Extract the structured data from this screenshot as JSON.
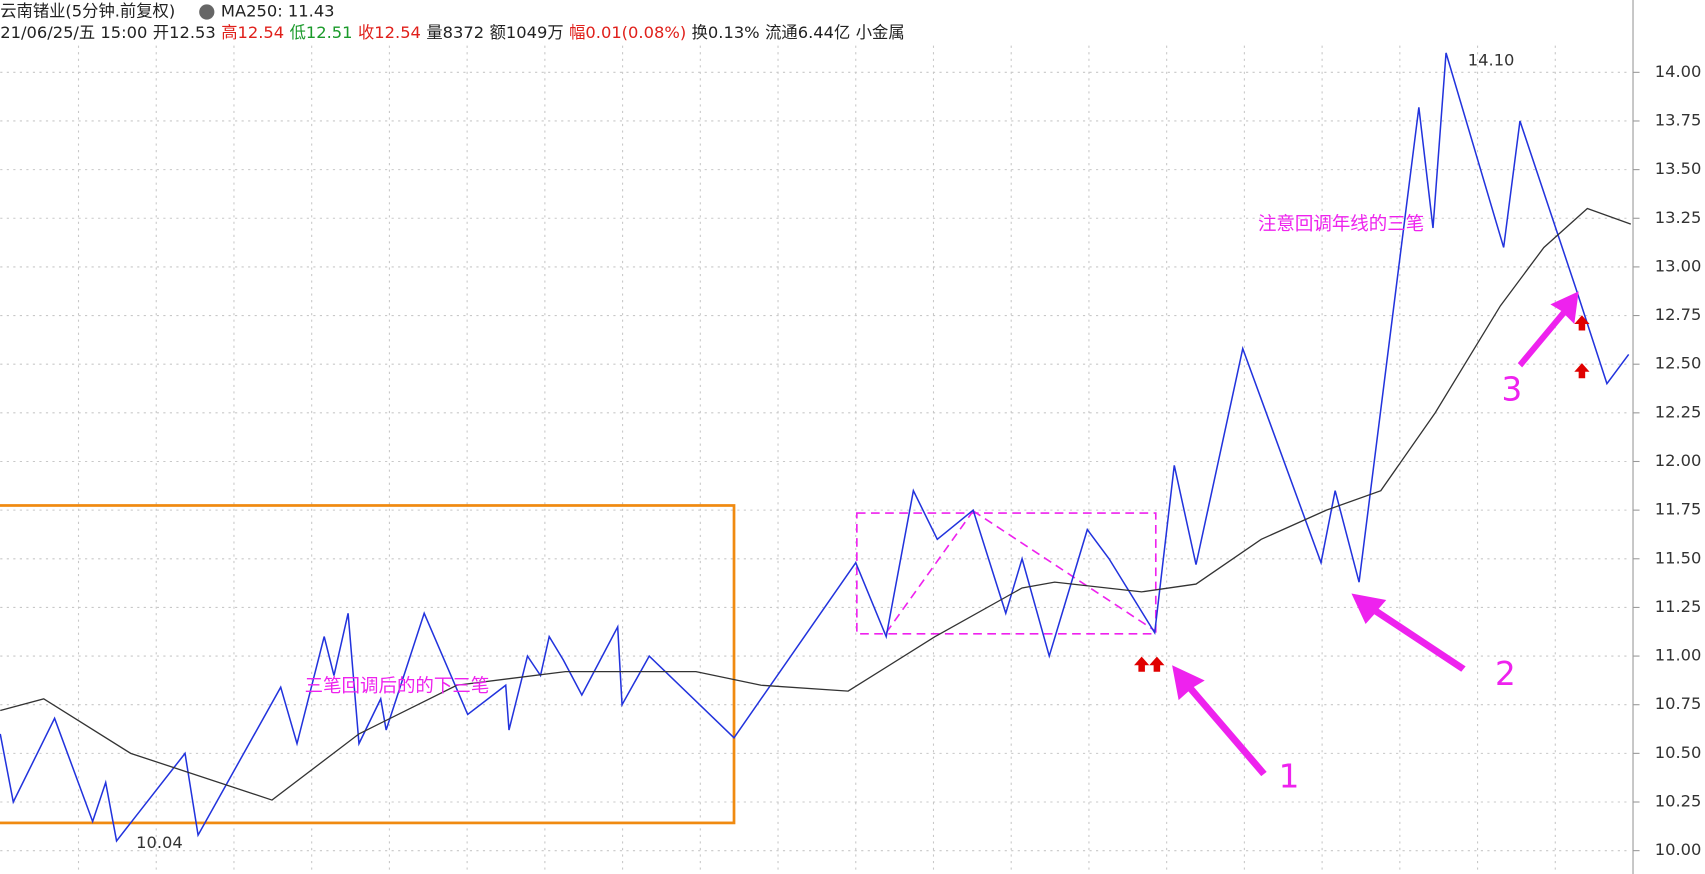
{
  "chart_data": {
    "type": "line",
    "header": {
      "title": "云南锗业(5分钟.前复权)",
      "ma_label": "MA250: 11.43",
      "items": [
        {
          "text": "21/06/25/五 15:00",
          "color": "#222222"
        },
        {
          "text": "开12.53",
          "color": "#222222"
        },
        {
          "text": "高12.54",
          "color": "#e0201b"
        },
        {
          "text": "低12.51",
          "color": "#1a9a2a"
        },
        {
          "text": "收12.54",
          "color": "#e0201b"
        },
        {
          "text": "量8372",
          "color": "#222222"
        },
        {
          "text": "额1049万",
          "color": "#222222"
        },
        {
          "text": "幅0.01(0.08%)",
          "color": "#e0201b"
        },
        {
          "text": "换0.13%",
          "color": "#222222"
        },
        {
          "text": "流通6.44亿",
          "color": "#222222"
        },
        {
          "text": "小金属",
          "color": "#222222"
        }
      ]
    },
    "xlim": [
      0,
      300
    ],
    "ylim": [
      9.88,
      14.26
    ],
    "yticks": [
      {
        "value": 10.0,
        "label": "10.00"
      },
      {
        "value": 10.25,
        "label": "10.25"
      },
      {
        "value": 10.5,
        "label": "10.50"
      },
      {
        "value": 10.75,
        "label": "10.75"
      },
      {
        "value": 11.0,
        "label": "11.00"
      },
      {
        "value": 11.25,
        "label": "11.25"
      },
      {
        "value": 11.5,
        "label": "11.50"
      },
      {
        "value": 11.75,
        "label": "11.75"
      },
      {
        "value": 12.0,
        "label": "12.00"
      },
      {
        "value": 12.25,
        "label": "12.25"
      },
      {
        "value": 12.5,
        "label": "12.50"
      },
      {
        "value": 12.75,
        "label": "12.75"
      },
      {
        "value": 13.0,
        "label": "13.00"
      },
      {
        "value": 13.25,
        "label": "13.25"
      },
      {
        "value": 13.5,
        "label": "13.50"
      },
      {
        "value": 13.75,
        "label": "13.75"
      },
      {
        "value": 14.0,
        "label": "14.00"
      }
    ],
    "grid": true,
    "series": [
      {
        "color": "#2233dd",
        "x": [
          0,
          2.4,
          10,
          17,
          19.4,
          21.4,
          34,
          36.4,
          51.6,
          54.6,
          59.6,
          61.4,
          64,
          66,
          70,
          71,
          78,
          86,
          93,
          93.6,
          97,
          99.4,
          101,
          103.6,
          107,
          113.6,
          114.4,
          119.4,
          135,
          157.4,
          163,
          168,
          172.4,
          179,
          185,
          188,
          193,
          200,
          204,
          212.4,
          216,
          220,
          228.6,
          243,
          245.6,
          250,
          261,
          263.6,
          266,
          276.6,
          279.6,
          290,
          295.6,
          299.6
        ],
        "values": [
          10.6,
          10.25,
          10.68,
          10.15,
          10.35,
          10.05,
          10.5,
          10.08,
          10.84,
          10.55,
          11.1,
          10.9,
          11.22,
          10.55,
          10.78,
          10.62,
          11.22,
          10.7,
          10.85,
          10.62,
          11.0,
          10.9,
          11.1,
          10.98,
          10.8,
          11.15,
          10.75,
          11.0,
          10.58,
          11.48,
          11.1,
          11.85,
          11.6,
          11.75,
          11.22,
          11.5,
          11.0,
          11.65,
          11.5,
          11.12,
          11.98,
          11.47,
          12.58,
          11.48,
          11.85,
          11.38,
          13.82,
          13.2,
          14.1,
          13.1,
          13.75,
          12.88,
          12.4,
          12.55
        ]
      },
      {
        "color": "#333333",
        "x": [
          0,
          8,
          24,
          50,
          66,
          84,
          104,
          128,
          140,
          156,
          172,
          188,
          194,
          210,
          220,
          232,
          244,
          254,
          264,
          276,
          284,
          292,
          300
        ],
        "values": [
          10.72,
          10.78,
          10.5,
          10.26,
          10.6,
          10.85,
          10.92,
          10.92,
          10.85,
          10.82,
          11.1,
          11.35,
          11.38,
          11.33,
          11.37,
          11.6,
          11.75,
          11.85,
          12.25,
          12.8,
          13.1,
          13.3,
          13.22
        ]
      }
    ],
    "annotations": {
      "high": "14.10",
      "low": "10.04",
      "note_top": "注意回调年线的三笔",
      "note_left": "三笔回调后的的下三笔",
      "n1": "1",
      "n2": "2",
      "n3": "3"
    }
  }
}
